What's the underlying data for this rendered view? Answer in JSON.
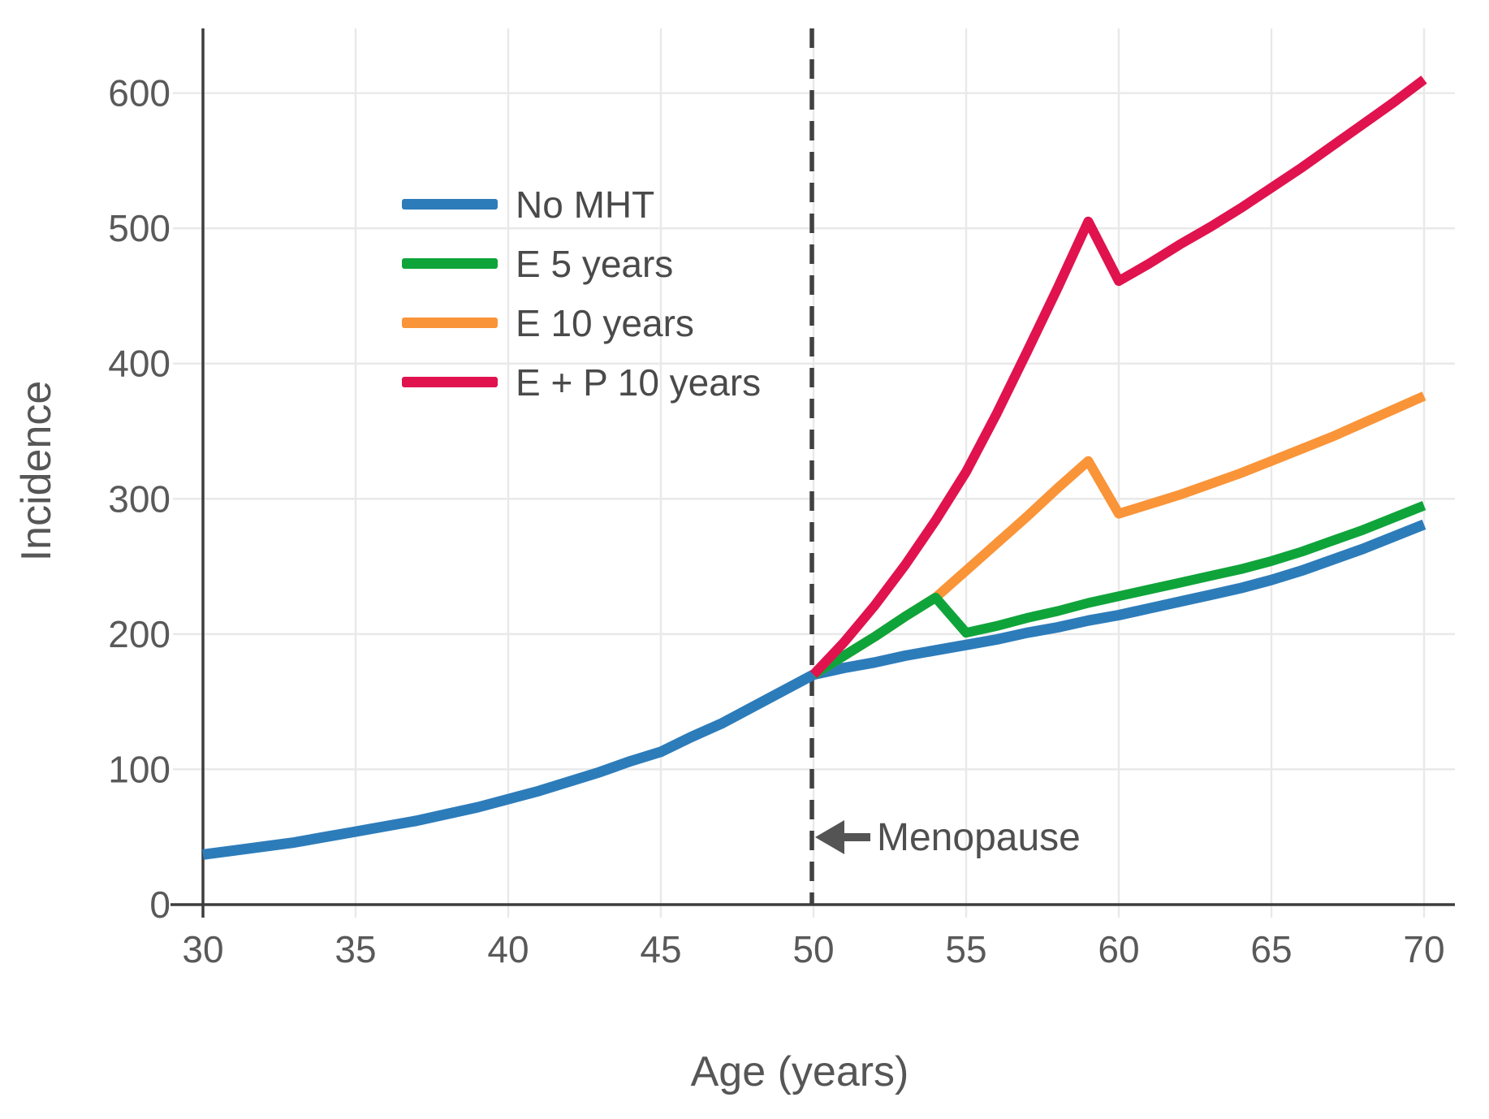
{
  "chart_data": {
    "type": "line",
    "title": "",
    "xlabel": "Age (years)",
    "ylabel": "Incidence",
    "xlim": [
      30,
      70
    ],
    "ylim": [
      0,
      648
    ],
    "x_ticks": [
      30,
      35,
      40,
      45,
      50,
      55,
      60,
      65,
      70
    ],
    "y_ticks": [
      0,
      100,
      200,
      300,
      400,
      500,
      600
    ],
    "grid": true,
    "legend_position": "upper left inside",
    "vline": {
      "x": 50,
      "style": "dashed",
      "color": "#414141"
    },
    "annotation": {
      "label": "Menopause",
      "x": 50,
      "y": 50,
      "arrow": "left"
    },
    "series": [
      {
        "name": "No MHT",
        "color": "#2d7cba",
        "points": [
          [
            30,
            37
          ],
          [
            31,
            40
          ],
          [
            32,
            43
          ],
          [
            33,
            46
          ],
          [
            34,
            50
          ],
          [
            35,
            54
          ],
          [
            36,
            58
          ],
          [
            37,
            62
          ],
          [
            38,
            67
          ],
          [
            39,
            72
          ],
          [
            40,
            78
          ],
          [
            41,
            84
          ],
          [
            42,
            91
          ],
          [
            43,
            98
          ],
          [
            44,
            106
          ],
          [
            45,
            113
          ],
          [
            46,
            124
          ],
          [
            47,
            134
          ],
          [
            48,
            146
          ],
          [
            49,
            158
          ],
          [
            50,
            170
          ],
          [
            51,
            175
          ],
          [
            52,
            179
          ],
          [
            53,
            184
          ],
          [
            54,
            188
          ],
          [
            55,
            192
          ],
          [
            56,
            196
          ],
          [
            57,
            201
          ],
          [
            58,
            205
          ],
          [
            59,
            210
          ],
          [
            60,
            214
          ],
          [
            61,
            219
          ],
          [
            62,
            224
          ],
          [
            63,
            229
          ],
          [
            64,
            234
          ],
          [
            65,
            240
          ],
          [
            66,
            247
          ],
          [
            67,
            255
          ],
          [
            68,
            263
          ],
          [
            69,
            272
          ],
          [
            70,
            281
          ]
        ]
      },
      {
        "name": "E 5 years",
        "color": "#0fa43a",
        "points": [
          [
            50,
            170
          ],
          [
            51,
            184
          ],
          [
            52,
            198
          ],
          [
            53,
            213
          ],
          [
            54,
            227
          ],
          [
            55,
            201
          ],
          [
            56,
            206
          ],
          [
            57,
            212
          ],
          [
            58,
            217
          ],
          [
            59,
            223
          ],
          [
            60,
            228
          ],
          [
            61,
            233
          ],
          [
            62,
            238
          ],
          [
            63,
            243
          ],
          [
            64,
            248
          ],
          [
            65,
            254
          ],
          [
            66,
            261
          ],
          [
            67,
            269
          ],
          [
            68,
            277
          ],
          [
            69,
            286
          ],
          [
            70,
            295
          ]
        ]
      },
      {
        "name": "E 10 years",
        "color": "#fa9438",
        "points": [
          [
            50,
            170
          ],
          [
            51,
            184
          ],
          [
            52,
            198
          ],
          [
            53,
            213
          ],
          [
            54,
            227
          ],
          [
            55,
            247
          ],
          [
            56,
            267
          ],
          [
            57,
            287
          ],
          [
            58,
            308
          ],
          [
            59,
            328
          ],
          [
            60,
            289
          ],
          [
            61,
            296
          ],
          [
            62,
            303
          ],
          [
            63,
            311
          ],
          [
            64,
            319
          ],
          [
            65,
            328
          ],
          [
            66,
            337
          ],
          [
            67,
            346
          ],
          [
            68,
            356
          ],
          [
            69,
            366
          ],
          [
            70,
            376
          ]
        ]
      },
      {
        "name": "E + P 10 years",
        "color": "#e0134e",
        "points": [
          [
            50,
            170
          ],
          [
            51,
            194
          ],
          [
            52,
            221
          ],
          [
            53,
            251
          ],
          [
            54,
            284
          ],
          [
            55,
            320
          ],
          [
            56,
            363
          ],
          [
            57,
            409
          ],
          [
            58,
            456
          ],
          [
            59,
            505
          ],
          [
            60,
            461
          ],
          [
            61,
            474
          ],
          [
            62,
            488
          ],
          [
            63,
            501
          ],
          [
            64,
            515
          ],
          [
            65,
            530
          ],
          [
            66,
            545
          ],
          [
            67,
            561
          ],
          [
            68,
            577
          ],
          [
            69,
            593
          ],
          [
            70,
            610
          ]
        ]
      }
    ]
  },
  "style": {
    "axis_color": "#3d3d3d",
    "grid_color": "#e9e9e9",
    "tick_text_color": "#595959",
    "title_text_color": "#565656",
    "annotation_color": "#545454"
  }
}
